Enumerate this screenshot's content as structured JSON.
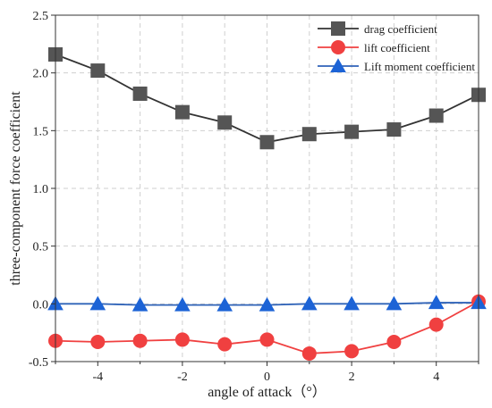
{
  "chart_data": {
    "type": "line",
    "xlabel": "angle of attack（°）",
    "ylabel": "three-component force coefficient",
    "xlim": [
      -5,
      5
    ],
    "ylim": [
      -0.5,
      2.5
    ],
    "xticks": [
      "-4",
      "-2",
      "0",
      "2",
      "4"
    ],
    "yticks": [
      "-0.5",
      "0.0",
      "0.5",
      "1.0",
      "1.5",
      "2.0",
      "2.5"
    ],
    "grid": true,
    "legend_position": "top-right",
    "x": [
      -5,
      -4,
      -3,
      -2,
      -1,
      0,
      1,
      2,
      3,
      4,
      5
    ],
    "series": [
      {
        "name": "drag coefficient",
        "marker": "square",
        "color": "#333333",
        "marker_color": "#555555",
        "values": [
          2.16,
          2.02,
          1.82,
          1.66,
          1.57,
          1.4,
          1.47,
          1.49,
          1.51,
          1.63,
          1.81
        ]
      },
      {
        "name": "lift coefficient",
        "marker": "circle",
        "color": "#f04040",
        "marker_color": "#f04040",
        "values": [
          -0.32,
          -0.33,
          -0.32,
          -0.31,
          -0.35,
          -0.31,
          -0.43,
          -0.41,
          -0.33,
          -0.18,
          0.02
        ]
      },
      {
        "name": "Lift moment coefficient",
        "marker": "triangle",
        "color": "#2f63b8",
        "marker_color": "#1c63d6",
        "values": [
          0.0,
          0.0,
          -0.01,
          -0.01,
          -0.01,
          -0.01,
          0.0,
          0.0,
          0.0,
          0.01,
          0.01
        ]
      }
    ]
  }
}
